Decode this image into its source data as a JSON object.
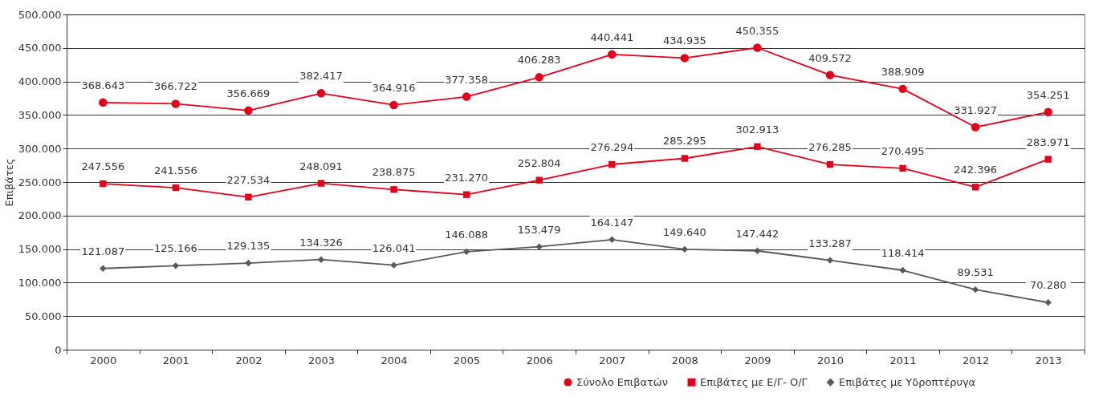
{
  "chart_data": {
    "type": "line",
    "ylabel": "Επιβάτες",
    "categories": [
      "2000",
      "2001",
      "2002",
      "2003",
      "2004",
      "2005",
      "2006",
      "2007",
      "2008",
      "2009",
      "2010",
      "2011",
      "2012",
      "2013"
    ],
    "series": [
      {
        "name": "Σύνολο Επιβατών",
        "color": "#e2001a",
        "marker": "circle",
        "values": [
          368643,
          366722,
          356669,
          382417,
          364916,
          377358,
          406283,
          440441,
          434935,
          450355,
          409572,
          388909,
          331927,
          354251
        ],
        "value_labels": [
          "368.643",
          "366.722",
          "356.669",
          "382.417",
          "364.916",
          "377.358",
          "406.283",
          "440.441",
          "434.935",
          "450.355",
          "409.572",
          "388.909",
          "331.927",
          "354.251"
        ]
      },
      {
        "name": "Επιβάτες με Ε/Γ- Ο/Γ",
        "color": "#e2001a",
        "marker": "square",
        "values": [
          247556,
          241556,
          227534,
          248091,
          238875,
          231270,
          252804,
          276294,
          285295,
          302913,
          276285,
          270495,
          242396,
          283971
        ],
        "value_labels": [
          "247.556",
          "241.556",
          "227.534",
          "248.091",
          "238.875",
          "231.270",
          "252.804",
          "276.294",
          "285.295",
          "302.913",
          "276.285",
          "270.495",
          "242.396",
          "283.971"
        ]
      },
      {
        "name": "Επιβάτες με Υδροπτέρυγα",
        "color": "#595959",
        "marker": "diamond",
        "values": [
          121087,
          125166,
          129135,
          134326,
          126041,
          146088,
          153479,
          164147,
          149640,
          147442,
          133287,
          118414,
          89531,
          70280
        ],
        "value_labels": [
          "121.087",
          "125.166",
          "129.135",
          "134.326",
          "126.041",
          "146.088",
          "153.479",
          "164.147",
          "149.640",
          "147.442",
          "133.287",
          "118.414",
          "89.531",
          "70.280"
        ]
      }
    ],
    "ylim": [
      0,
      500000
    ],
    "yticks": [
      0,
      {
        "value": 50000,
        "label": "50.000"
      },
      {
        "value": 100000,
        "label": "100.000"
      },
      {
        "value": 150000,
        "label": "150.000"
      },
      {
        "value": 200000,
        "label": "200.000"
      },
      {
        "value": 250000,
        "label": "250.000"
      },
      {
        "value": 300000,
        "label": "300.000"
      },
      {
        "value": 350000,
        "label": "350.000"
      },
      {
        "value": 400000,
        "label": "400.000"
      },
      {
        "value": 450000,
        "label": "450.000"
      },
      {
        "value": 500000,
        "label": "500.000"
      }
    ],
    "grid": "y",
    "legend": "bottom right",
    "line_style": "solid"
  }
}
